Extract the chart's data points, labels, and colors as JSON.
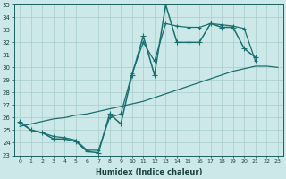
{
  "xlabel": "Humidex (Indice chaleur)",
  "x_hours": [
    0,
    1,
    2,
    3,
    4,
    5,
    6,
    7,
    8,
    9,
    10,
    11,
    12,
    13,
    14,
    15,
    16,
    17,
    18,
    19,
    20,
    21,
    22,
    23
  ],
  "y_main": [
    25.7,
    25.0,
    24.8,
    24.3,
    24.3,
    24.1,
    23.3,
    23.2,
    26.3,
    25.5,
    29.4,
    32.5,
    29.4,
    35.0,
    32.0,
    32.0,
    32.0,
    33.5,
    33.2,
    33.2,
    31.5,
    30.8,
    null,
    null
  ],
  "y_upper": [
    25.7,
    25.0,
    24.8,
    24.3,
    24.3,
    24.1,
    23.3,
    23.2,
    26.3,
    25.8,
    29.4,
    32.5,
    29.6,
    35.0,
    32.2,
    32.2,
    32.2,
    33.5,
    33.3,
    33.3,
    31.6,
    30.8,
    null,
    null
  ],
  "y_smooth": [
    25.6,
    25.0,
    24.8,
    24.5,
    24.4,
    24.2,
    23.4,
    23.4,
    26.0,
    26.3,
    29.5,
    32.0,
    30.5,
    33.5,
    33.3,
    33.2,
    33.2,
    33.5,
    33.4,
    33.3,
    33.1,
    30.5,
    null,
    null
  ],
  "y_trend": [
    25.3,
    25.5,
    25.7,
    25.9,
    26.0,
    26.2,
    26.3,
    26.5,
    26.7,
    26.9,
    27.1,
    27.3,
    27.6,
    27.9,
    28.2,
    28.5,
    28.8,
    29.1,
    29.4,
    29.7,
    29.9,
    30.1,
    30.1,
    30.0
  ],
  "line_color": "#1a7070",
  "background_color": "#cce8e8",
  "grid_color": "#a8cccc",
  "ylim": [
    23,
    35
  ],
  "xlim_min": -0.5,
  "xlim_max": 23.5,
  "yticks": [
    23,
    24,
    25,
    26,
    27,
    28,
    29,
    30,
    31,
    32,
    33,
    34,
    35
  ],
  "xticks": [
    0,
    1,
    2,
    3,
    4,
    5,
    6,
    7,
    8,
    9,
    10,
    11,
    12,
    13,
    14,
    15,
    16,
    17,
    18,
    19,
    20,
    21,
    22,
    23
  ]
}
